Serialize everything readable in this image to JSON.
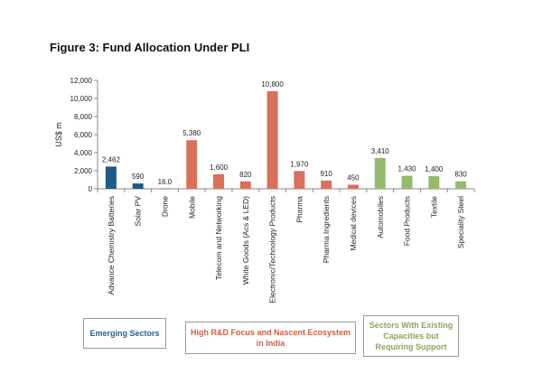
{
  "chart_data": {
    "type": "bar",
    "title": "Figure 3: Fund Allocation Under PLI",
    "ylabel": "US$ m",
    "xlabel": "",
    "ylim": [
      0,
      12000
    ],
    "yticks": [
      0,
      2000,
      4000,
      6000,
      8000,
      10000,
      12000
    ],
    "ytick_labels": [
      "0",
      "2,000",
      "4,000",
      "6,000",
      "8,000",
      "10,000",
      "12,000"
    ],
    "grid": false,
    "categories": [
      "Advance Chemistry Batteries",
      "Solar PV",
      "Drone",
      "Mobile",
      "Telecom and Networking",
      "White Goods (Acs & LED)",
      "Electronic/Technology Products",
      "Pharma",
      "Pharma Ingredients",
      "Medical devices",
      "Automobiles",
      "Food Products",
      "Textile",
      "Speciality Steel"
    ],
    "values": [
      2462,
      590,
      16,
      5380,
      1600,
      820,
      10800,
      1970,
      910,
      450,
      3410,
      1430,
      1400,
      830
    ],
    "data_labels": [
      "2,462",
      "590",
      "16.0",
      "5,380",
      "1,600",
      "820",
      "10,800",
      "1,970",
      "910",
      "450",
      "3,410",
      "1,430",
      "1,400",
      "830"
    ],
    "groups": [
      {
        "name": "Emerging Sectors",
        "color": "#1f5b85",
        "indices": [
          0,
          1,
          2
        ]
      },
      {
        "name": "High R&D Focus and Nascent Ecosystem in India",
        "color": "#d9705a",
        "indices": [
          3,
          4,
          5,
          6,
          7,
          8,
          9
        ]
      },
      {
        "name": "Sectors With Existing Capacities but Requiring Support",
        "color": "#93bb6f",
        "indices": [
          10,
          11,
          12,
          13
        ]
      }
    ]
  },
  "legend": {
    "emerging": "Emerging Sectors",
    "rd": "High R&D Focus and Nascent Ecosystem in India",
    "existing": "Sectors With Existing Capacities but Requiring Support"
  }
}
